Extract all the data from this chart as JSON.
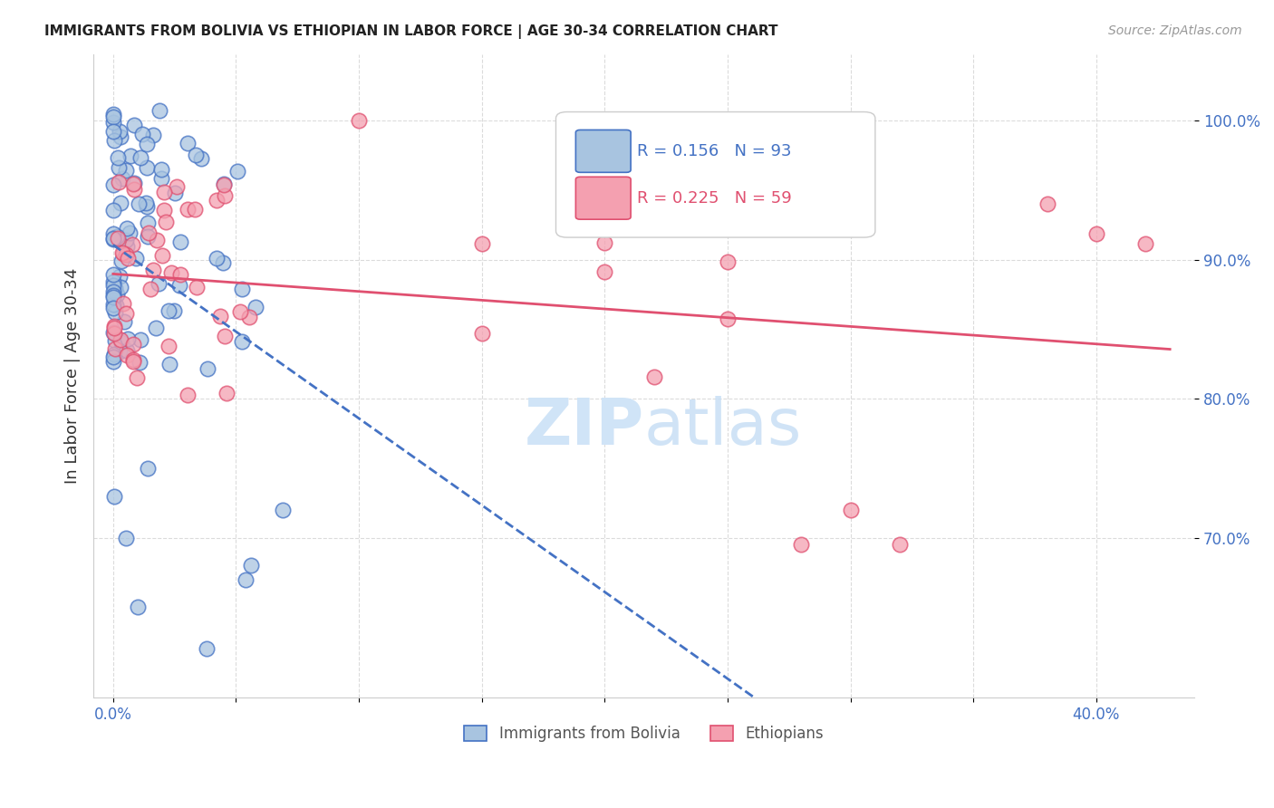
{
  "title": "IMMIGRANTS FROM BOLIVIA VS ETHIOPIAN IN LABOR FORCE | AGE 30-34 CORRELATION CHART",
  "source_text": "Source: ZipAtlas.com",
  "ylabel": "In Labor Force | Age 30-34",
  "legend_label1": "Immigrants from Bolivia",
  "legend_label2": "Ethiopians",
  "r1": 0.156,
  "n1": 93,
  "r2": 0.225,
  "n2": 59,
  "color1": "#a8c4e0",
  "color2": "#f4a0b0",
  "trendline1_color": "#4472c4",
  "trendline2_color": "#e05070",
  "watermark_color": "#d0e4f7",
  "tick_label_color": "#4472c4"
}
